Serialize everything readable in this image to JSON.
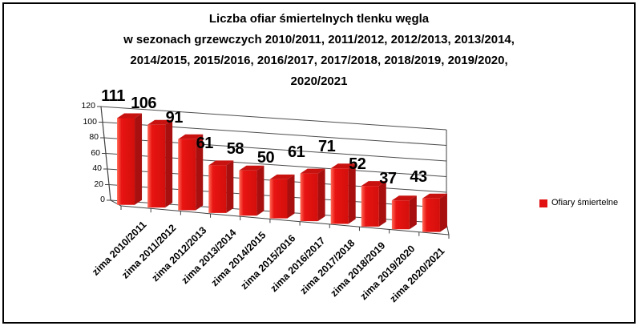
{
  "chart_data": {
    "type": "bar",
    "style": "3d-clustered-column",
    "title_lines": [
      "Liczba ofiar śmiertelnych tlenku węgla",
      "w sezonach grzewczych 2010/2011, 2011/2012, 2012/2013, 2013/2014,",
      "2014/2015, 2015/2016, 2016/2017, 2017/2018, 2018/2019, 2019/2020,",
      "2020/2021"
    ],
    "categories": [
      "zima 2010/2011",
      "zima 2011/2012",
      "zima 2012/2013",
      "zima 2013/2014",
      "zima 2014/2015",
      "zima 2015/2016",
      "zima 2016/2017",
      "zima 2017/2018",
      "zima 2018/2019",
      "zima 2019/2020",
      "zima 2020/2021"
    ],
    "series": [
      {
        "name": "Ofiary śmiertelne",
        "values": [
          111,
          106,
          91,
          61,
          58,
          50,
          61,
          71,
          52,
          37,
          43
        ]
      }
    ],
    "xlabel": "",
    "ylabel": "",
    "ylim": [
      0,
      120
    ],
    "yticks": [
      0,
      20,
      40,
      60,
      80,
      100,
      120
    ],
    "grid": true,
    "data_labels": true,
    "legend_position": "right"
  },
  "legend": {
    "label": "Ofiary śmiertelne",
    "swatch_color": "#e31212"
  },
  "colors": {
    "bar_front": "#e81412",
    "bar_front_highlight": "#ff6a57",
    "bar_front_shade": "#d30f0c",
    "bar_side": "#a81010",
    "bar_top": "#c81210",
    "axis_line": "#404040",
    "grid_line": "#4d4d4d",
    "text": "#000000",
    "background": "#ffffff",
    "frame_border": "#000000"
  }
}
